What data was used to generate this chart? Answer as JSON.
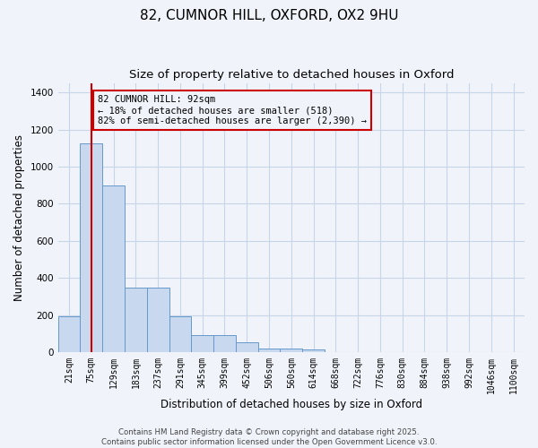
{
  "title_line1": "82, CUMNOR HILL, OXFORD, OX2 9HU",
  "title_line2": "Size of property relative to detached houses in Oxford",
  "xlabel": "Distribution of detached houses by size in Oxford",
  "ylabel": "Number of detached properties",
  "bar_labels": [
    "21sqm",
    "75sqm",
    "129sqm",
    "183sqm",
    "237sqm",
    "291sqm",
    "345sqm",
    "399sqm",
    "452sqm",
    "506sqm",
    "560sqm",
    "614sqm",
    "668sqm",
    "722sqm",
    "776sqm",
    "830sqm",
    "884sqm",
    "938sqm",
    "992sqm",
    "1046sqm",
    "1100sqm"
  ],
  "bar_values": [
    195,
    1125,
    900,
    350,
    350,
    195,
    90,
    90,
    55,
    20,
    20,
    15,
    0,
    0,
    0,
    0,
    0,
    0,
    0,
    0,
    0
  ],
  "bar_color": "#c8d8ee",
  "bar_edge_color": "#6699cc",
  "grid_color": "#c8d4e8",
  "background_color": "#f0f4fa",
  "vline_x_index": 1,
  "vline_color": "#cc0000",
  "annotation_text": "82 CUMNOR HILL: 92sqm\n← 18% of detached houses are smaller (518)\n82% of semi-detached houses are larger (2,390) →",
  "annotation_box_color": "#cc0000",
  "ylim": [
    0,
    1450
  ],
  "yticks": [
    0,
    200,
    400,
    600,
    800,
    1000,
    1200,
    1400
  ],
  "footer_text": "Contains HM Land Registry data © Crown copyright and database right 2025.\nContains public sector information licensed under the Open Government Licence v3.0.",
  "title_fontsize": 11,
  "subtitle_fontsize": 9.5,
  "tick_fontsize": 7,
  "ylabel_fontsize": 8.5,
  "xlabel_fontsize": 8.5,
  "footer_fontsize": 6.2
}
